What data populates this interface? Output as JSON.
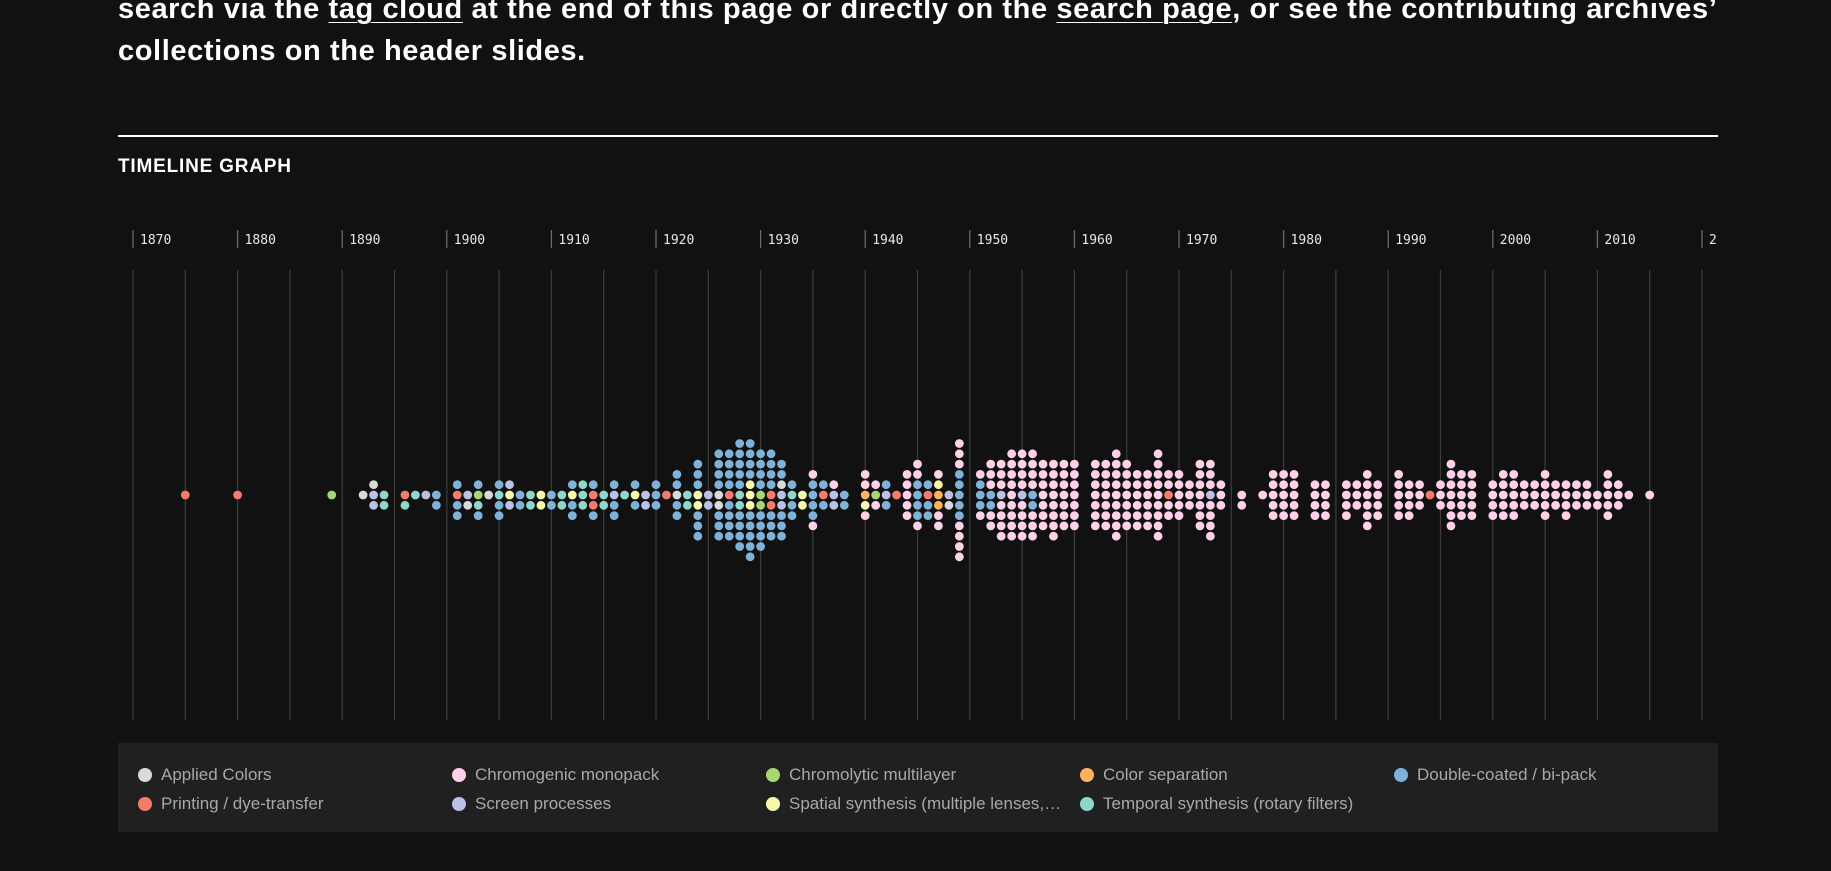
{
  "intro": {
    "part1": "search via the ",
    "link1": "tag cloud",
    "part2": " at the end of this page or directly on the ",
    "link2": "search page",
    "part3": ", or see the contributing archives’ collections on the header slides."
  },
  "section_title": "TIMELINE GRAPH",
  "legend": [
    {
      "label": "Applied Colors",
      "color": "#d9d9d9"
    },
    {
      "label": "Chromogenic monopack",
      "color": "#ffd1e8"
    },
    {
      "label": "Chromolytic multilayer",
      "color": "#a8d672"
    },
    {
      "label": "Color separation",
      "color": "#ffb25c"
    },
    {
      "label": "Double-coated / bi-pack",
      "color": "#7fb2d9"
    },
    {
      "label": "Printing / dye-transfer",
      "color": "#f47c6c"
    },
    {
      "label": "Screen processes",
      "color": "#bcbfe6"
    },
    {
      "label": "Spatial synthesis (multiple lenses,…",
      "color": "#f8f8ac"
    },
    {
      "label": "Temporal synthesis (rotary filters)",
      "color": "#8fd8c9"
    }
  ],
  "chart_data": {
    "type": "scatter",
    "subtype": "beeswarm timeline",
    "x_ticks": [
      "1870",
      "1880",
      "1890",
      "1900",
      "1910",
      "1920",
      "1930",
      "1940",
      "1950",
      "1960",
      "1970",
      "1980",
      "1990",
      "2000",
      "2010",
      "2"
    ],
    "xlim": [
      1870,
      2020
    ],
    "gridlines_every_years": 5,
    "series": [
      {
        "name": "Printing / dye-transfer",
        "points": [
          [
            1875,
            1
          ],
          [
            1880,
            1
          ],
          [
            1896,
            1
          ],
          [
            1901,
            1
          ],
          [
            1914,
            2
          ],
          [
            1921,
            1
          ],
          [
            1927,
            1
          ],
          [
            1931,
            2
          ],
          [
            1936,
            1
          ],
          [
            1943,
            1
          ],
          [
            1946,
            1
          ],
          [
            1969,
            1
          ],
          [
            1994,
            1
          ]
        ]
      },
      {
        "name": "Chromolytic multilayer",
        "points": [
          [
            1889,
            1
          ],
          [
            1903,
            1
          ],
          [
            1930,
            2
          ],
          [
            1941,
            1
          ]
        ]
      },
      {
        "name": "Color separation",
        "points": [
          [
            1940,
            1
          ],
          [
            1947,
            2
          ]
        ]
      },
      {
        "name": "Spatial synthesis (multiple lenses,…",
        "points": [
          [
            1906,
            1
          ],
          [
            1909,
            2
          ],
          [
            1912,
            1
          ],
          [
            1918,
            1
          ],
          [
            1924,
            2
          ],
          [
            1929,
            3
          ],
          [
            1934,
            2
          ],
          [
            1940,
            1
          ],
          [
            1947,
            1
          ]
        ]
      },
      {
        "name": "Temporal synthesis (rotary filters)",
        "points": [
          [
            1894,
            2
          ],
          [
            1896,
            1
          ],
          [
            1897,
            1
          ],
          [
            1903,
            1
          ],
          [
            1905,
            1
          ],
          [
            1908,
            2
          ],
          [
            1911,
            2
          ],
          [
            1913,
            3
          ],
          [
            1915,
            2
          ],
          [
            1917,
            1
          ],
          [
            1923,
            2
          ],
          [
            1928,
            2
          ],
          [
            1933,
            1
          ]
        ]
      },
      {
        "name": "Screen processes",
        "points": [
          [
            1893,
            2
          ],
          [
            1898,
            1
          ],
          [
            1902,
            1
          ],
          [
            1906,
            2
          ],
          [
            1916,
            1
          ],
          [
            1919,
            2
          ],
          [
            1925,
            2
          ],
          [
            1932,
            2
          ],
          [
            1937,
            2
          ],
          [
            1942,
            1
          ],
          [
            1948,
            1
          ],
          [
            1953,
            1
          ],
          [
            1955,
            1
          ],
          [
            1973,
            1
          ]
        ]
      },
      {
        "name": "Applied Colors",
        "points": [
          [
            1892,
            1
          ],
          [
            1893,
            1
          ],
          [
            1902,
            1
          ],
          [
            1904,
            1
          ],
          [
            1922,
            1
          ],
          [
            1926,
            2
          ],
          [
            1932,
            1
          ],
          [
            1948,
            1
          ]
        ]
      },
      {
        "name": "Double-coated / bi-pack",
        "points": [
          [
            1899,
            2
          ],
          [
            1901,
            3
          ],
          [
            1903,
            2
          ],
          [
            1905,
            3
          ],
          [
            1907,
            2
          ],
          [
            1910,
            2
          ],
          [
            1912,
            3
          ],
          [
            1914,
            2
          ],
          [
            1916,
            3
          ],
          [
            1918,
            2
          ],
          [
            1920,
            3
          ],
          [
            1922,
            4
          ],
          [
            1924,
            6
          ],
          [
            1926,
            7
          ],
          [
            1927,
            8
          ],
          [
            1928,
            9
          ],
          [
            1929,
            9
          ],
          [
            1930,
            8
          ],
          [
            1931,
            7
          ],
          [
            1932,
            5
          ],
          [
            1933,
            3
          ],
          [
            1935,
            4
          ],
          [
            1936,
            2
          ],
          [
            1938,
            2
          ],
          [
            1942,
            2
          ],
          [
            1945,
            4
          ],
          [
            1946,
            3
          ],
          [
            1949,
            5
          ],
          [
            1951,
            3
          ],
          [
            1952,
            2
          ],
          [
            1956,
            2
          ]
        ]
      },
      {
        "name": "Chromogenic monopack",
        "points": [
          [
            1935,
            2
          ],
          [
            1937,
            1
          ],
          [
            1940,
            3
          ],
          [
            1941,
            2
          ],
          [
            1944,
            5
          ],
          [
            1945,
            3
          ],
          [
            1947,
            3
          ],
          [
            1949,
            7
          ],
          [
            1951,
            2
          ],
          [
            1952,
            5
          ],
          [
            1953,
            7
          ],
          [
            1954,
            9
          ],
          [
            1955,
            8
          ],
          [
            1956,
            7
          ],
          [
            1957,
            7
          ],
          [
            1958,
            8
          ],
          [
            1959,
            7
          ],
          [
            1960,
            7
          ],
          [
            1962,
            7
          ],
          [
            1963,
            7
          ],
          [
            1964,
            9
          ],
          [
            1965,
            7
          ],
          [
            1966,
            6
          ],
          [
            1967,
            6
          ],
          [
            1968,
            9
          ],
          [
            1969,
            4
          ],
          [
            1970,
            5
          ],
          [
            1971,
            3
          ],
          [
            1972,
            7
          ],
          [
            1973,
            7
          ],
          [
            1974,
            3
          ],
          [
            1976,
            2
          ],
          [
            1978,
            1
          ],
          [
            1979,
            5
          ],
          [
            1980,
            5
          ],
          [
            1981,
            5
          ],
          [
            1983,
            4
          ],
          [
            1984,
            4
          ],
          [
            1986,
            4
          ],
          [
            1987,
            3
          ],
          [
            1988,
            6
          ],
          [
            1989,
            4
          ],
          [
            1991,
            5
          ],
          [
            1992,
            4
          ],
          [
            1993,
            3
          ],
          [
            1995,
            3
          ],
          [
            1996,
            7
          ],
          [
            1997,
            5
          ],
          [
            1998,
            5
          ],
          [
            2000,
            4
          ],
          [
            2001,
            5
          ],
          [
            2002,
            5
          ],
          [
            2003,
            3
          ],
          [
            2004,
            3
          ],
          [
            2005,
            5
          ],
          [
            2006,
            3
          ],
          [
            2007,
            4
          ],
          [
            2008,
            3
          ],
          [
            2009,
            3
          ],
          [
            2010,
            2
          ],
          [
            2011,
            5
          ],
          [
            2012,
            3
          ],
          [
            2013,
            1
          ],
          [
            2015,
            1
          ]
        ]
      }
    ]
  }
}
